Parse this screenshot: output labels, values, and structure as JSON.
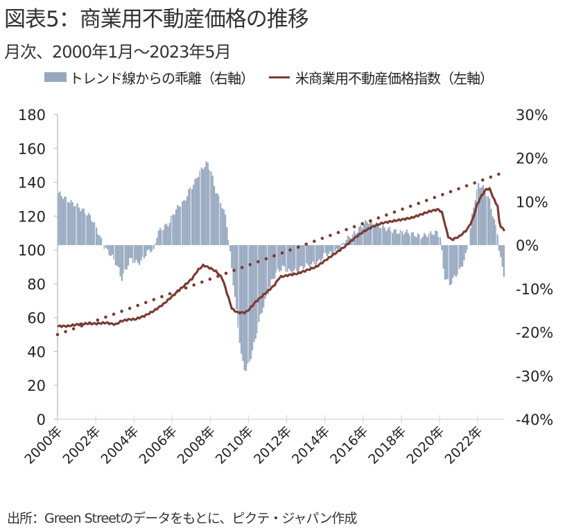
{
  "header": {
    "title": "図表5：商業用不動産価格の推移",
    "subtitle": "月次、2000年1月～2023年5月"
  },
  "legend": {
    "bar_label": "トレンド線からの乖離（右軸）",
    "line_label": "米商業用不動産価格指数（左軸）"
  },
  "footer": {
    "source": "出所：Green Streetのデータをもとに、ピクテ・ジャパン作成"
  },
  "colors": {
    "bar": "#97a8bf",
    "line": "#7a3b33",
    "axis": "#bfbfbf"
  },
  "chart_data": {
    "type": "bar+line",
    "title": "図表5：商業用不動産価格の推移",
    "subtitle": "月次、2000年1月～2023年5月",
    "x_start": "2000-01",
    "x_end": "2023-05",
    "x_tick_labels": [
      "2000年",
      "2002年",
      "2004年",
      "2006年",
      "2008年",
      "2010年",
      "2012年",
      "2014年",
      "2016年",
      "2018年",
      "2020年",
      "2022年"
    ],
    "x_tick_years": [
      2000,
      2002,
      2004,
      2006,
      2008,
      2010,
      2012,
      2014,
      2016,
      2018,
      2020,
      2022
    ],
    "left_axis": {
      "ylim": [
        0,
        180
      ],
      "ticks": [
        0,
        20,
        40,
        60,
        80,
        100,
        120,
        140,
        160,
        180
      ],
      "tick_labels": [
        "0",
        "20",
        "40",
        "60",
        "80",
        "100",
        "120",
        "140",
        "160",
        "180"
      ]
    },
    "right_axis": {
      "ylim": [
        -40,
        30
      ],
      "ticks": [
        -40,
        -30,
        -20,
        -10,
        0,
        10,
        20,
        30
      ],
      "tick_labels": [
        "-40%",
        "-30%",
        "-20%",
        "-10%",
        "0%",
        "10%",
        "20%",
        "30%"
      ]
    },
    "series": [
      {
        "name": "米商業用不動産価格指数（左軸）",
        "type": "line",
        "axis": "left",
        "points": [
          [
            2000.0,
            55
          ],
          [
            2000.5,
            55
          ],
          [
            2001.0,
            56
          ],
          [
            2001.5,
            56.5
          ],
          [
            2002.0,
            56.5
          ],
          [
            2002.5,
            57
          ],
          [
            2003.0,
            56
          ],
          [
            2003.3,
            58
          ],
          [
            2003.7,
            59
          ],
          [
            2004.0,
            59
          ],
          [
            2004.5,
            61
          ],
          [
            2005.0,
            64
          ],
          [
            2005.5,
            68
          ],
          [
            2006.0,
            73
          ],
          [
            2006.5,
            78
          ],
          [
            2007.0,
            83
          ],
          [
            2007.3,
            88
          ],
          [
            2007.6,
            91
          ],
          [
            2007.8,
            90
          ],
          [
            2008.0,
            89
          ],
          [
            2008.3,
            87
          ],
          [
            2008.6,
            83
          ],
          [
            2008.9,
            72
          ],
          [
            2009.1,
            65
          ],
          [
            2009.4,
            63
          ],
          [
            2009.8,
            63
          ],
          [
            2010.0,
            65
          ],
          [
            2010.3,
            69
          ],
          [
            2010.7,
            73
          ],
          [
            2011.0,
            76
          ],
          [
            2011.3,
            79
          ],
          [
            2011.6,
            84
          ],
          [
            2012.0,
            85
          ],
          [
            2012.5,
            86
          ],
          [
            2013.0,
            88
          ],
          [
            2013.5,
            90
          ],
          [
            2014.0,
            94
          ],
          [
            2014.5,
            98
          ],
          [
            2015.0,
            102
          ],
          [
            2015.5,
            107
          ],
          [
            2016.0,
            111
          ],
          [
            2016.5,
            114
          ],
          [
            2017.0,
            116
          ],
          [
            2017.5,
            117
          ],
          [
            2018.0,
            118
          ],
          [
            2018.5,
            119
          ],
          [
            2019.0,
            121
          ],
          [
            2019.5,
            123
          ],
          [
            2019.9,
            124
          ],
          [
            2020.1,
            122
          ],
          [
            2020.4,
            108
          ],
          [
            2020.6,
            106
          ],
          [
            2021.0,
            108
          ],
          [
            2021.4,
            112
          ],
          [
            2021.7,
            118
          ],
          [
            2021.9,
            126
          ],
          [
            2022.1,
            131
          ],
          [
            2022.4,
            136
          ],
          [
            2022.6,
            136
          ],
          [
            2022.8,
            130
          ],
          [
            2023.0,
            126
          ],
          [
            2023.1,
            115
          ],
          [
            2023.3,
            112
          ],
          [
            2023.4,
            111
          ]
        ]
      },
      {
        "name": "Trend (dotted)",
        "type": "line",
        "axis": "left",
        "points": [
          [
            2000.0,
            50
          ],
          [
            2023.4,
            146
          ]
        ]
      },
      {
        "name": "トレンド線からの乖離（右軸）",
        "type": "bar",
        "axis": "right",
        "points": [
          [
            2000.0,
            12
          ],
          [
            2000.3,
            11
          ],
          [
            2000.6,
            10
          ],
          [
            2001.0,
            9
          ],
          [
            2001.3,
            8
          ],
          [
            2001.7,
            6.5
          ],
          [
            2002.0,
            4
          ],
          [
            2002.3,
            0.5
          ],
          [
            2002.5,
            -1
          ],
          [
            2002.8,
            -2.5
          ],
          [
            2003.0,
            -4
          ],
          [
            2003.2,
            -6
          ],
          [
            2003.3,
            -8
          ],
          [
            2003.5,
            -6
          ],
          [
            2003.8,
            -3
          ],
          [
            2004.0,
            -4
          ],
          [
            2004.3,
            -4
          ],
          [
            2004.6,
            -2
          ],
          [
            2004.8,
            -1
          ],
          [
            2005.0,
            -1.5
          ],
          [
            2005.2,
            3
          ],
          [
            2005.5,
            4
          ],
          [
            2005.8,
            5
          ],
          [
            2006.0,
            7
          ],
          [
            2006.3,
            9
          ],
          [
            2006.6,
            10
          ],
          [
            2006.9,
            13
          ],
          [
            2007.1,
            14
          ],
          [
            2007.3,
            16
          ],
          [
            2007.6,
            18
          ],
          [
            2007.8,
            19
          ],
          [
            2008.0,
            17
          ],
          [
            2008.2,
            13
          ],
          [
            2008.5,
            10
          ],
          [
            2008.8,
            6
          ],
          [
            2009.0,
            -2
          ],
          [
            2009.2,
            -10
          ],
          [
            2009.4,
            -18
          ],
          [
            2009.6,
            -26
          ],
          [
            2009.8,
            -29
          ],
          [
            2010.0,
            -27
          ],
          [
            2010.3,
            -22
          ],
          [
            2010.6,
            -16
          ],
          [
            2010.9,
            -12
          ],
          [
            2011.2,
            -8
          ],
          [
            2011.5,
            -6
          ],
          [
            2011.8,
            -5
          ],
          [
            2012.0,
            -6
          ],
          [
            2012.4,
            -6
          ],
          [
            2012.8,
            -5
          ],
          [
            2013.2,
            -4.5
          ],
          [
            2013.6,
            -4
          ],
          [
            2014.0,
            -2
          ],
          [
            2014.4,
            -2
          ],
          [
            2014.8,
            -0.5
          ],
          [
            2015.0,
            1
          ],
          [
            2015.3,
            2
          ],
          [
            2015.6,
            3
          ],
          [
            2016.0,
            5
          ],
          [
            2016.3,
            5.5
          ],
          [
            2016.6,
            5
          ],
          [
            2017.0,
            4
          ],
          [
            2017.4,
            3.5
          ],
          [
            2017.8,
            3
          ],
          [
            2018.2,
            3
          ],
          [
            2018.6,
            2.5
          ],
          [
            2019.0,
            2
          ],
          [
            2019.4,
            2.5
          ],
          [
            2019.8,
            3
          ],
          [
            2020.0,
            2
          ],
          [
            2020.2,
            -7
          ],
          [
            2020.5,
            -9
          ],
          [
            2020.8,
            -7
          ],
          [
            2021.0,
            -6
          ],
          [
            2021.3,
            -3
          ],
          [
            2021.5,
            0.5
          ],
          [
            2021.7,
            8
          ],
          [
            2022.0,
            14
          ],
          [
            2022.3,
            13
          ],
          [
            2022.6,
            10
          ],
          [
            2022.8,
            6
          ],
          [
            2023.0,
            3
          ],
          [
            2023.1,
            -2
          ],
          [
            2023.3,
            -6
          ],
          [
            2023.4,
            -8
          ]
        ]
      }
    ]
  }
}
